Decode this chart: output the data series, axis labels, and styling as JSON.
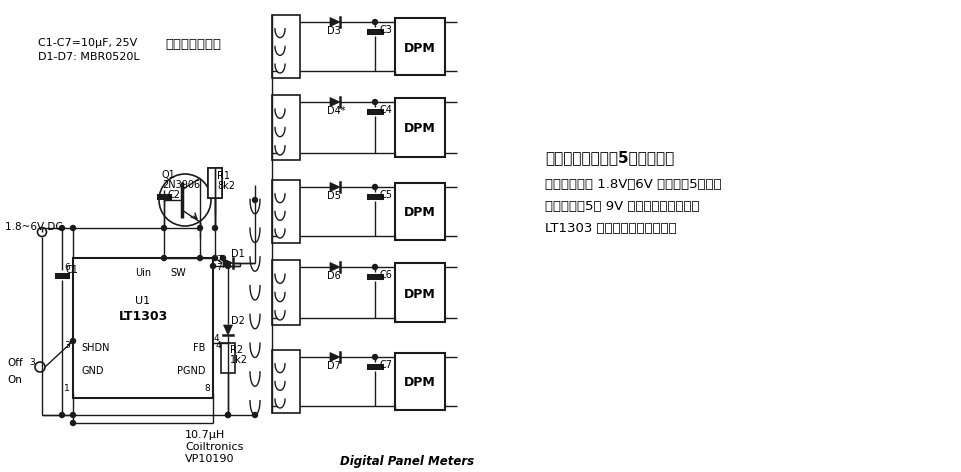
{
  "bg_color": "#ffffff",
  "note1a": "C1-C7=10μF, 25V",
  "note1b": "组成陶瓷电容器",
  "note2": "D1-D7: MBR0520L",
  "title_text": "用于数字面板表的5输出变换器",
  "desc_line1": "此电路用一个 1.8V～6V 的电源为5个数字",
  "desc_line2": "面板供电。5个 9V 输出完全隔离浮置，",
  "desc_line3": "LT1303 为微功率高效稳压器。",
  "label_bottom1": "10.7μH",
  "label_bottom2": "Coiltronics",
  "label_bottom3": "VP10190",
  "label_dpm": "Digital Panel Meters",
  "figsize": [
    9.61,
    4.72
  ],
  "dpi": 100
}
